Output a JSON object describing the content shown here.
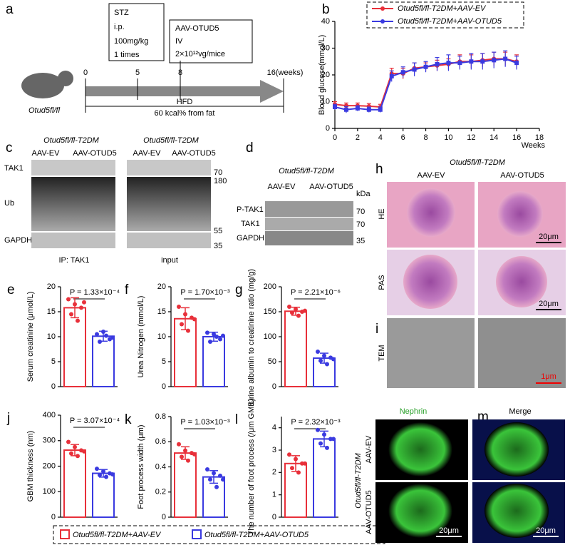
{
  "chart_data": [
    {
      "type": "line",
      "panel_label": "b",
      "ylabel": "Blood glucose(mmol/L)",
      "xlabel": "Weeks",
      "x": [
        0,
        1,
        2,
        3,
        4,
        5,
        6,
        7,
        8,
        9,
        10,
        11,
        12,
        13,
        14,
        15,
        16
      ],
      "series": [
        {
          "name": "Otud5fl/fl-T2DM+AAV-EV",
          "color": "#e8303a",
          "values": [
            9,
            8.5,
            8.5,
            8.3,
            8,
            20.5,
            20.5,
            22.5,
            23,
            23.5,
            24,
            25,
            25,
            25.5,
            26,
            26,
            25
          ],
          "errors": [
            1,
            1,
            1,
            1,
            1,
            2,
            2,
            2,
            1.5,
            2,
            2,
            2.5,
            2.5,
            2.5,
            2.5,
            2.5,
            2.5
          ]
        },
        {
          "name": "Otud5fl/fl-T2DM+AAV-OTUD5",
          "color": "#3a3ae0",
          "values": [
            8,
            7,
            7.5,
            7,
            7,
            19.5,
            21,
            22,
            23,
            24,
            24.5,
            24.5,
            25,
            25,
            25.5,
            26,
            24.5
          ],
          "errors": [
            1,
            1.2,
            1,
            1,
            1,
            2,
            2,
            2.5,
            2,
            2.5,
            3,
            2.5,
            3,
            3,
            3,
            3,
            2.5
          ]
        }
      ],
      "xlim": [
        0,
        18
      ],
      "xticks": [
        0,
        2,
        4,
        6,
        8,
        10,
        12,
        14,
        16,
        18
      ],
      "ylim": [
        0,
        40
      ],
      "yticks": [
        0,
        10,
        20,
        30,
        40
      ]
    },
    {
      "type": "bar",
      "panel_label": "e",
      "ylabel": "Serum creatinine (μmol/L)",
      "annotation": "P = 1.33×10⁻⁴",
      "categories": [
        null,
        null
      ],
      "colors": [
        "#e8303a",
        "#3a3ae0"
      ],
      "values": [
        15.8,
        10.1
      ],
      "errors": [
        2,
        1
      ],
      "points": [
        [
          17.5,
          16.5,
          15.8,
          14.5,
          13.2,
          16.9
        ],
        [
          10.5,
          11,
          9.5,
          9,
          10.2,
          9.8
        ]
      ],
      "ylim": [
        0,
        20
      ],
      "yticks": [
        0,
        5,
        10,
        15,
        20
      ]
    },
    {
      "type": "bar",
      "panel_label": "f",
      "ylabel": "Urea Nitrogen (mmol/L)",
      "annotation": "P = 1.70×10⁻³",
      "categories": [
        null,
        null
      ],
      "colors": [
        "#e8303a",
        "#3a3ae0"
      ],
      "values": [
        13.6,
        10
      ],
      "errors": [
        2.2,
        0.9
      ],
      "points": [
        [
          16,
          14.5,
          13.8,
          12.5,
          11.2,
          13.5
        ],
        [
          10.8,
          10.5,
          9.5,
          9,
          10,
          10.2
        ]
      ],
      "ylim": [
        0,
        20
      ],
      "yticks": [
        0,
        5,
        10,
        15,
        20
      ]
    },
    {
      "type": "bar",
      "panel_label": "g",
      "ylabel": "Urine albumin to creatinine ratio (mg/g)",
      "annotation": "P = 2.21×10⁻⁶",
      "categories": [
        null,
        null
      ],
      "colors": [
        "#e8303a",
        "#3a3ae0"
      ],
      "values": [
        151,
        57
      ],
      "errors": [
        8,
        10
      ],
      "points": [
        [
          160,
          155,
          150,
          148,
          142,
          152
        ],
        [
          70,
          62,
          58,
          52,
          45,
          55
        ]
      ],
      "ylim": [
        0,
        200
      ],
      "yticks": [
        0,
        50,
        100,
        150,
        200
      ]
    },
    {
      "type": "bar",
      "panel_label": "j",
      "ylabel": "GBM thickness (nm)",
      "annotation": "P = 3.07×10⁻⁴",
      "categories": [
        null,
        null
      ],
      "colors": [
        "#e8303a",
        "#3a3ae0"
      ],
      "values": [
        263,
        172
      ],
      "errors": [
        22,
        15
      ],
      "points": [
        [
          295,
          275,
          262,
          250,
          240,
          258
        ],
        [
          190,
          180,
          172,
          165,
          158,
          168
        ]
      ],
      "ylim": [
        0,
        400
      ],
      "yticks": [
        0,
        100,
        200,
        300,
        400
      ]
    },
    {
      "type": "bar",
      "panel_label": "k",
      "ylabel": "Foot process width (μm)",
      "annotation": "P = 1.03×10⁻³",
      "categories": [
        null,
        null
      ],
      "colors": [
        "#e8303a",
        "#3a3ae0"
      ],
      "values": [
        0.51,
        0.32
      ],
      "errors": [
        0.05,
        0.05
      ],
      "points": [
        [
          0.58,
          0.53,
          0.51,
          0.48,
          0.45,
          0.5
        ],
        [
          0.38,
          0.35,
          0.33,
          0.3,
          0.24,
          0.3
        ]
      ],
      "ylim": [
        0,
        0.8
      ],
      "yticks": [
        0,
        0.2,
        0.4,
        0.6,
        0.8
      ]
    },
    {
      "type": "bar",
      "panel_label": "l",
      "ylabel": "The number of foot process (/μm GMB)",
      "annotation": "P = 2.32×10⁻³",
      "categories": [
        null,
        null
      ],
      "colors": [
        "#e8303a",
        "#3a3ae0"
      ],
      "values": [
        2.4,
        3.5
      ],
      "errors": [
        0.35,
        0.35
      ],
      "points": [
        [
          2.8,
          2.6,
          2.4,
          2.2,
          2,
          2.4
        ],
        [
          3.9,
          3.7,
          3.5,
          3.3,
          3.1,
          3.5
        ]
      ],
      "ylim": [
        0,
        4.5
      ],
      "yticks": [
        0,
        1,
        2,
        3,
        4
      ]
    }
  ],
  "legend": [
    {
      "name": "Otud5fl/fl-T2DM+AAV-EV",
      "color": "#e8303a"
    },
    {
      "name": "Otud5fl/fl-T2DM+AAV-OTUD5",
      "color": "#3a3ae0"
    }
  ],
  "panels": {
    "a": {
      "letter": "a",
      "stz": [
        "STZ",
        "i.p.",
        "100mg/kg",
        "1 times"
      ],
      "aav": [
        "AAV-OTUD5",
        "IV",
        "2×10¹²vg/mice"
      ],
      "timeline": [
        "0",
        "5",
        "8",
        "16(weeks)"
      ],
      "hfd": "HFD",
      "fat": "60 kcal% from fat",
      "mouse": "Otud5fl/fl"
    },
    "c": {
      "letter": "c",
      "group": [
        "Otud5fl/fl-T2DM",
        "Otud5fl/fl-T2DM"
      ],
      "lanes": [
        "AAV-EV",
        "AAV-OTUD5",
        "AAV-EV",
        "AAV-OTUD5"
      ],
      "rows": [
        "TAK1",
        "Ub",
        "GAPDH"
      ],
      "markers": [
        "70",
        "180",
        "55",
        "35"
      ],
      "footer": [
        "IP: TAK1",
        "input"
      ]
    },
    "d": {
      "letter": "d",
      "group": "Otud5fl/fl-T2DM",
      "lanes": [
        "AAV-EV",
        "AAV-OTUD5"
      ],
      "kda": "kDa",
      "rows": [
        "P-TAK1",
        "TAK1",
        "GAPDH"
      ],
      "markers": [
        "70",
        "70",
        "35"
      ]
    },
    "h": {
      "letter": "h",
      "group": "Otud5fl/fl-T2DM",
      "cols": [
        "AAV-EV",
        "AAV-OTUD5"
      ],
      "rows": [
        "HE",
        "PAS"
      ],
      "scales": [
        "20μm",
        "20μm"
      ]
    },
    "i": {
      "letter": "i",
      "row": "TEM",
      "scale": "1μm"
    },
    "m": {
      "letter": "m",
      "cols": [
        "Nephrin",
        "Merge"
      ],
      "rows": [
        "AAV-EV",
        "AAV-OTUD5"
      ],
      "group": "Otud5fl/fl-T2DM",
      "scales": [
        "20μm",
        "20μm"
      ]
    }
  }
}
